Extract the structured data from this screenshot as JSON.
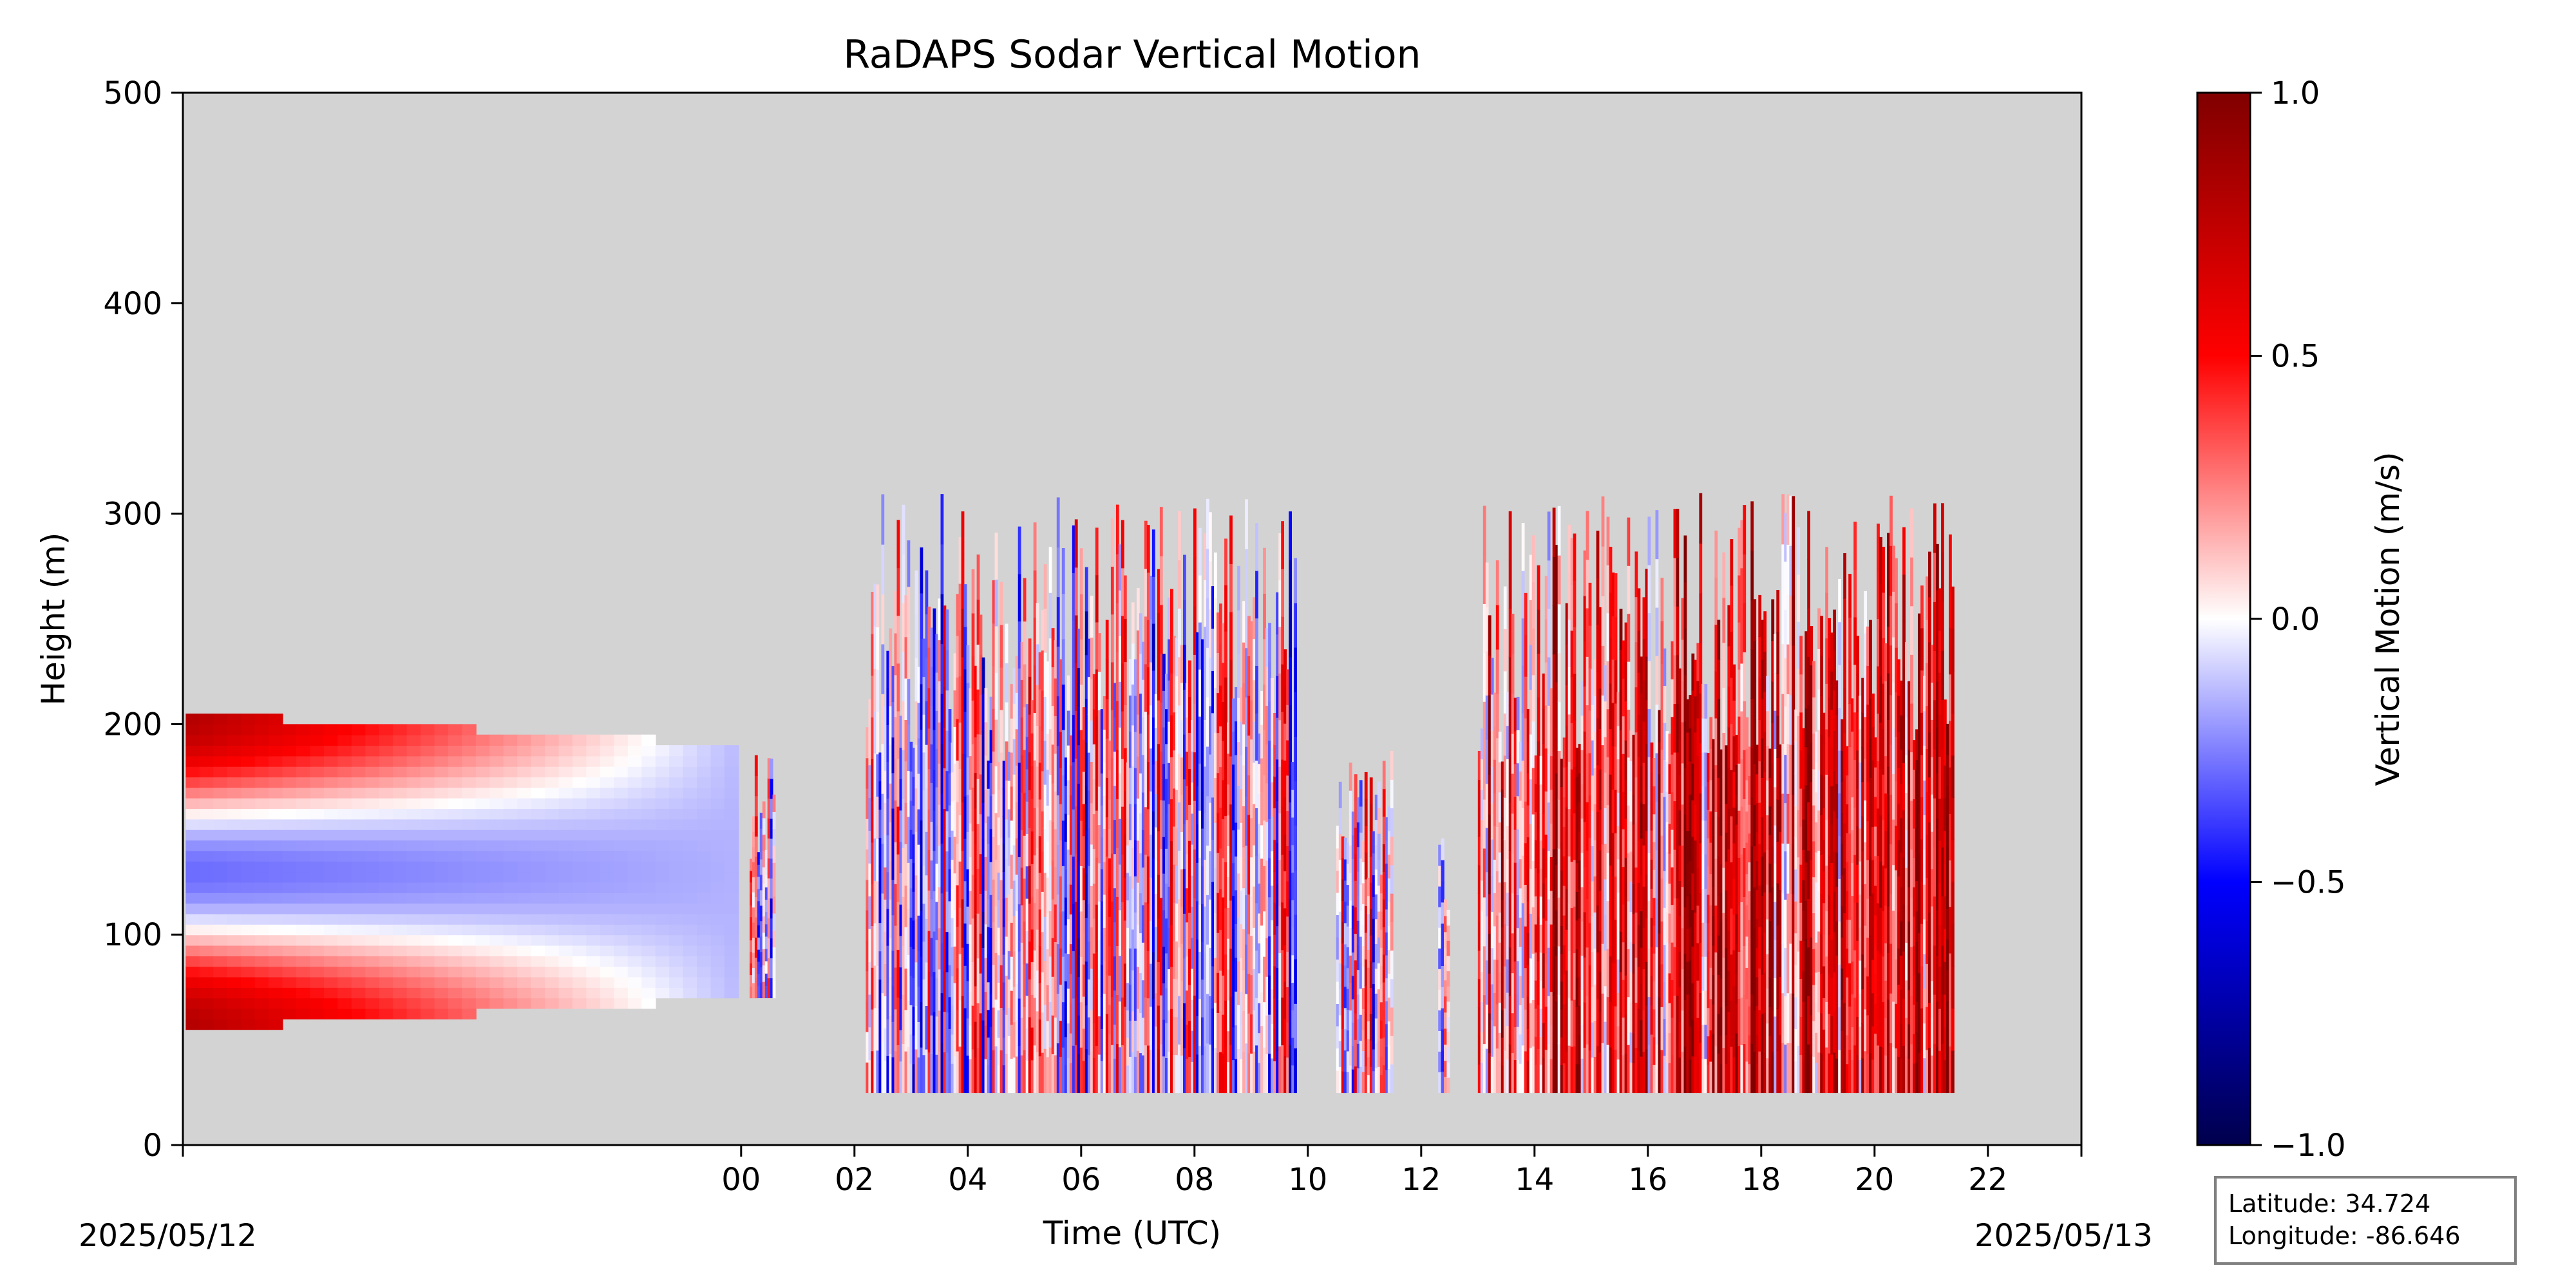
{
  "chart_data": {
    "type": "heatmap",
    "title": "RaDAPS Sodar Vertical Motion",
    "xlabel": "Time (UTC)",
    "ylabel": "Height (m)",
    "ylim": [
      0,
      500
    ],
    "yticks": [
      0,
      100,
      200,
      300,
      400,
      500
    ],
    "xticks": [
      "00",
      "02",
      "04",
      "06",
      "08",
      "10",
      "12",
      "14",
      "16",
      "18",
      "20",
      "22"
    ],
    "date_labels": [
      "2025/05/12",
      "2025/05/13"
    ],
    "colorbar": {
      "label": "Vertical Motion (m/s)",
      "range": [
        -1.0,
        1.0
      ],
      "ticks": [
        "1.0",
        "0.5",
        "0.0",
        "−0.5",
        "−1.0"
      ],
      "tick_values": [
        1.0,
        0.5,
        0.0,
        -0.5,
        -1.0
      ],
      "colormap": "seismic"
    },
    "background_color": "#d3d3d3",
    "location": {
      "latitude": "Latitude: 34.724",
      "longitude": "Longitude: -86.646"
    },
    "data_segments": [
      {
        "start": -9.8,
        "end": -0.05,
        "height_min": 55,
        "height_max": 205,
        "mean_motion": 0.35
      },
      {
        "start": 0.15,
        "end": 0.6,
        "height_min": 70,
        "height_max": 190,
        "mean_motion": -0.1
      },
      {
        "start": 2.2,
        "end": 9.8,
        "height_min": 25,
        "height_max": 310,
        "mean_motion": 0.0
      },
      {
        "start": 10.5,
        "end": 11.5,
        "height_min": 25,
        "height_max": 190,
        "mean_motion": 0.1
      },
      {
        "start": 12.3,
        "end": 12.5,
        "height_min": 25,
        "height_max": 160,
        "mean_motion": -0.05
      },
      {
        "start": 13.0,
        "end": 21.4,
        "height_min": 25,
        "height_max": 310,
        "mean_motion": 0.45
      }
    ]
  }
}
